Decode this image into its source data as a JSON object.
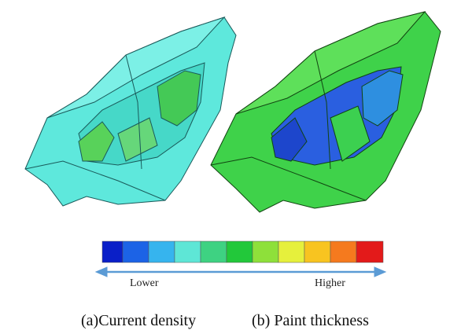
{
  "figure": {
    "panels": [
      {
        "caption": "(a)Current density"
      },
      {
        "caption": "(b) Paint thickness"
      }
    ],
    "legend": {
      "low_label": "Lower",
      "high_label": "Higher"
    }
  }
}
